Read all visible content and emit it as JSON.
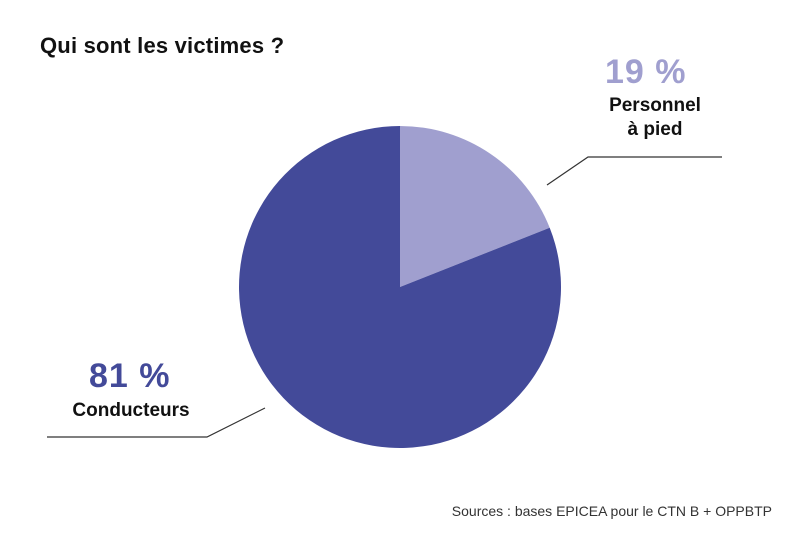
{
  "title": "Qui sont les victimes ?",
  "source": "Sources : bases EPICEA pour le CTN B + OPPBTP",
  "colors": {
    "dark": "#434a99",
    "light": "#a09fcf"
  },
  "labels": {
    "right": {
      "pct": "19 %",
      "name": "Personnel à pied",
      "line1": "Personnel",
      "line2": "à pied"
    },
    "left": {
      "pct": "81 %",
      "name": "Conducteurs"
    }
  },
  "chart_data": {
    "type": "pie",
    "title": "Qui sont les victimes ?",
    "categories": [
      "Personnel à pied",
      "Conducteurs"
    ],
    "values": [
      19,
      81
    ],
    "unit": "%",
    "colors": [
      "#a09fcf",
      "#434a99"
    ],
    "legend": "none (callout labels)",
    "annotations": [
      "Sources : bases EPICEA pour le CTN B + OPPBTP"
    ]
  }
}
